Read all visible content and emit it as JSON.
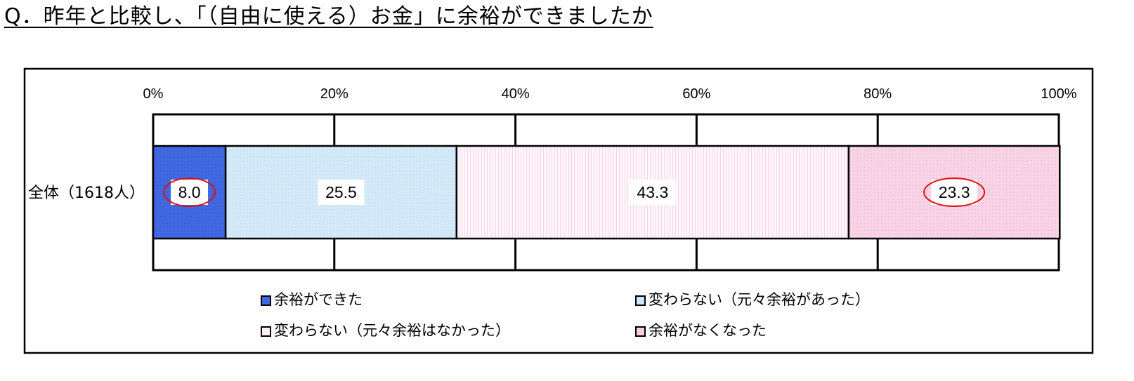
{
  "question": "Q．昨年と比較し、「（自由に使える）お金」に余裕ができましたか",
  "chart_data": {
    "type": "bar",
    "orientation": "horizontal-stacked-100",
    "categories": [
      "全体（1618人）"
    ],
    "series": [
      {
        "name": "余裕ができた",
        "values": [
          8.0
        ],
        "label": "8.0",
        "color": "#4169e1",
        "highlighted": true
      },
      {
        "name": "変わらない（元々余裕があった）",
        "values": [
          25.5
        ],
        "label": "25.5",
        "color": "#cfe6f7",
        "highlighted": false
      },
      {
        "name": "変わらない（元々余裕はなかった）",
        "values": [
          43.3
        ],
        "label": "43.3",
        "color": "#fdf0f6",
        "highlighted": false
      },
      {
        "name": "余裕がなくなった",
        "values": [
          23.3
        ],
        "label": "23.3",
        "color": "#f8cde2",
        "highlighted": true
      }
    ],
    "x_ticks": [
      "0%",
      "20%",
      "40%",
      "60%",
      "80%",
      "100%"
    ],
    "xlim": [
      0,
      100
    ],
    "grid": true,
    "legend_position": "bottom",
    "highlight_color": "#dd1111"
  }
}
